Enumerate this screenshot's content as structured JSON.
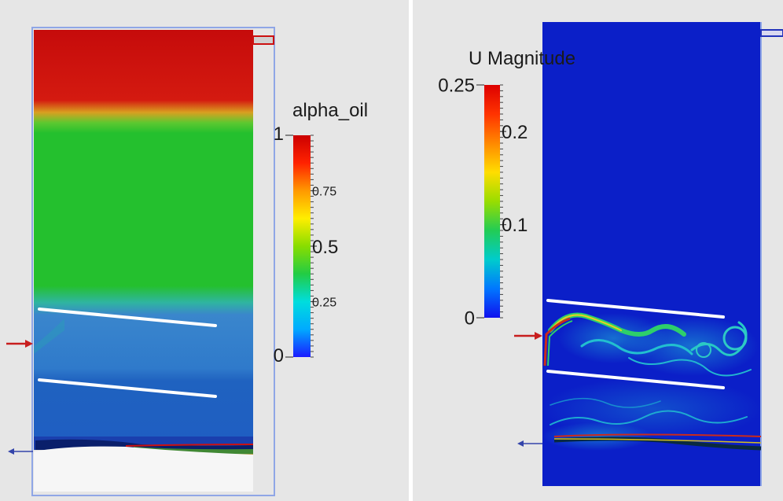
{
  "left_panel": {
    "colorbar": {
      "title": "alpha_oil",
      "range": [
        0,
        1
      ],
      "ticks": [
        {
          "value": 1,
          "label": "1"
        },
        {
          "value": 0.75,
          "label": "0.75"
        },
        {
          "value": 0.5,
          "label": "0.5"
        },
        {
          "value": 0.25,
          "label": "0.25"
        },
        {
          "value": 0,
          "label": "0"
        }
      ],
      "colormap": [
        "#1b1bff",
        "#00aaff",
        "#00dddd",
        "#22cc44",
        "#88dd00",
        "#ffee00",
        "#ff9900",
        "#ff2200",
        "#cc0000"
      ]
    }
  },
  "right_panel": {
    "colorbar": {
      "title": "U Magnitude",
      "range": [
        0,
        0.25
      ],
      "ticks": [
        {
          "value": 0.25,
          "label": "0.25"
        },
        {
          "value": 0.2,
          "label": "0.2"
        },
        {
          "value": 0.1,
          "label": "0.1"
        },
        {
          "value": 0,
          "label": "0"
        }
      ],
      "colormap": [
        "#1010ee",
        "#0077ff",
        "#00cccc",
        "#22cc55",
        "#99dd00",
        "#ffdd00",
        "#ff8800",
        "#ff3300",
        "#dd0000"
      ]
    }
  },
  "colors": {
    "background": "#e6e6e6",
    "oil": "#cc1111",
    "oil_interface": "#e8c020",
    "emulsion": "#24c02e",
    "water_upper": "#3a86cc",
    "water_lower": "#1f62c0",
    "velocity_field": "#0b1fc8",
    "frame": "#8fa6e6",
    "baffle": "#ffffff",
    "inlet_arrow": "#c81e1e",
    "outlet_arrow": "#3344aa"
  }
}
